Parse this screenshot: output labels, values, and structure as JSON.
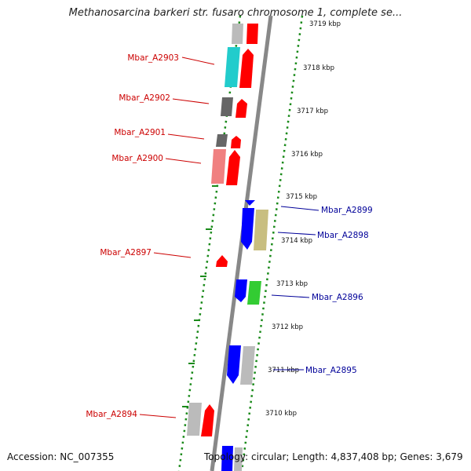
{
  "title": "Methanosarcina barkeri str. fusaro chromosome 1, complete se...",
  "accession": "Accession: NC_007355",
  "stats": "Topology: circular; Length: 4,837,408 bp; Genes: 3,679",
  "ticks": [
    "3719 kbp",
    "3718 kbp",
    "3717 kbp",
    "3716 kbp",
    "3715 kbp",
    "3714 kbp",
    "3713 kbp",
    "3712 kbp",
    "3711 kbp",
    "3710 kbp"
  ],
  "labels": {
    "forward": [
      "Mbar_A2903",
      "Mbar_A2902",
      "Mbar_A2901",
      "Mbar_A2900",
      "Mbar_A2897",
      "Mbar_A2894"
    ],
    "reverse": [
      "Mbar_A2899",
      "Mbar_A2898",
      "Mbar_A2896",
      "Mbar_A2895"
    ]
  },
  "colors": {
    "forward_label": "#cc0000",
    "reverse_label": "#000099",
    "backbone": "#888888",
    "dots": "#1a8a1a",
    "red": "#ff0000",
    "blue": "#0000ff",
    "grey": "#bbbbbb",
    "darkgrey": "#666666",
    "cyan": "#22cccc",
    "pink": "#f08080",
    "khaki": "#c8be80",
    "green": "#33cc33"
  }
}
